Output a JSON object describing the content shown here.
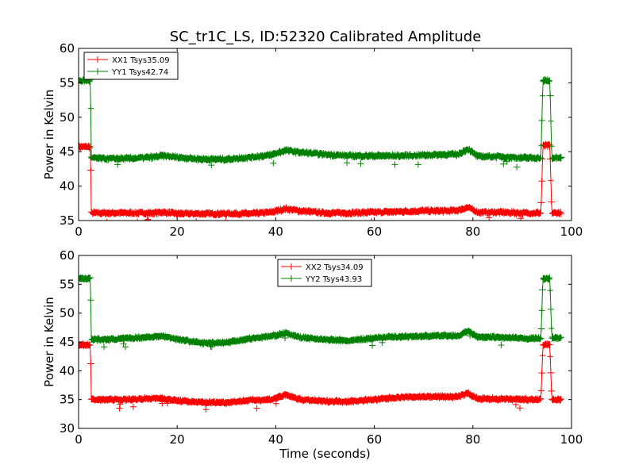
{
  "figure": {
    "title": "SC_tr1C_LS, ID:52320 Calibrated Amplitude"
  },
  "chart_data": [
    {
      "type": "line",
      "title": "SC_tr1C_LS, ID:52320 Calibrated Amplitude",
      "xlabel": "",
      "ylabel": "Power in Kelvin",
      "xlim": [
        0,
        100
      ],
      "ylim": [
        35,
        60
      ],
      "xticks": [
        0,
        20,
        40,
        60,
        80,
        100
      ],
      "yticks": [
        35,
        40,
        45,
        50,
        55,
        60
      ],
      "grid": false,
      "legend_position": "top-left",
      "marker": "+",
      "series": [
        {
          "name": "XX1 Tsys35.09",
          "color": "#ff0000",
          "x": [
            0,
            2.4,
            2.6,
            5,
            10,
            15,
            17,
            20,
            25,
            30,
            35,
            39,
            42,
            45,
            50,
            55,
            60,
            65,
            70,
            75,
            77,
            79,
            81,
            85,
            90,
            93.8,
            94.2,
            95.6,
            96.0,
            98
          ],
          "y": [
            45.7,
            45.7,
            36.1,
            36.1,
            36.1,
            36.1,
            36.2,
            36.0,
            36.0,
            36.0,
            36.0,
            36.2,
            36.7,
            36.4,
            36.1,
            36.1,
            36.2,
            36.3,
            36.4,
            36.4,
            36.5,
            36.9,
            36.2,
            36.2,
            36.1,
            36.1,
            45.9,
            45.9,
            36.1,
            36.1
          ]
        },
        {
          "name": "YY1 Tsys42.74",
          "color": "#008000",
          "x": [
            0,
            2.4,
            2.6,
            5,
            10,
            15,
            17,
            20,
            25,
            30,
            35,
            39,
            42,
            45,
            50,
            55,
            60,
            65,
            70,
            75,
            77,
            79,
            81,
            85,
            90,
            93.8,
            94.2,
            95.6,
            96.0,
            98
          ],
          "y": [
            55.3,
            55.3,
            44.1,
            44.0,
            44.0,
            44.2,
            44.4,
            44.2,
            43.9,
            43.9,
            44.2,
            44.5,
            45.2,
            44.9,
            44.6,
            44.4,
            44.4,
            44.4,
            44.5,
            44.6,
            44.6,
            45.4,
            44.3,
            44.3,
            44.1,
            44.1,
            55.3,
            55.3,
            44.1,
            44.1
          ]
        }
      ]
    },
    {
      "type": "line",
      "title": "",
      "xlabel": "Time (seconds)",
      "ylabel": "Power in Kelvin",
      "xlim": [
        0,
        100
      ],
      "ylim": [
        30,
        60
      ],
      "xticks": [
        0,
        20,
        40,
        60,
        80,
        100
      ],
      "yticks": [
        30,
        35,
        40,
        45,
        50,
        55,
        60
      ],
      "grid": false,
      "legend_position": "top-center",
      "marker": "+",
      "series": [
        {
          "name": "XX2 Tsys34.09",
          "color": "#ff0000",
          "x": [
            0,
            2.4,
            2.6,
            5,
            10,
            15,
            17,
            20,
            25,
            30,
            35,
            39,
            42,
            45,
            50,
            55,
            60,
            65,
            70,
            75,
            77,
            79,
            81,
            85,
            90,
            93.8,
            94.2,
            95.6,
            96.0,
            98
          ],
          "y": [
            44.5,
            44.5,
            35.0,
            35.0,
            35.0,
            35.2,
            35.2,
            34.8,
            34.5,
            34.5,
            34.9,
            35.0,
            35.8,
            35.0,
            34.7,
            34.7,
            35.0,
            35.4,
            35.5,
            35.5,
            35.5,
            36.1,
            35.1,
            35.1,
            35.0,
            35.0,
            44.5,
            44.5,
            35.0,
            35.0
          ]
        },
        {
          "name": "YY2 Tsys43.93",
          "color": "#008000",
          "x": [
            0,
            2.4,
            2.6,
            5,
            10,
            15,
            17,
            20,
            25,
            30,
            35,
            39,
            42,
            45,
            50,
            55,
            60,
            65,
            70,
            75,
            77,
            79,
            81,
            85,
            90,
            93.8,
            94.2,
            95.6,
            96.0,
            98
          ],
          "y": [
            56.0,
            56.0,
            45.5,
            45.4,
            45.6,
            45.9,
            46.0,
            45.5,
            44.8,
            44.9,
            45.6,
            46.0,
            46.5,
            45.8,
            45.4,
            45.2,
            45.7,
            45.9,
            46.0,
            46.1,
            46.0,
            46.9,
            45.8,
            45.8,
            45.6,
            45.6,
            56.0,
            56.0,
            45.7,
            45.7
          ]
        }
      ]
    }
  ]
}
